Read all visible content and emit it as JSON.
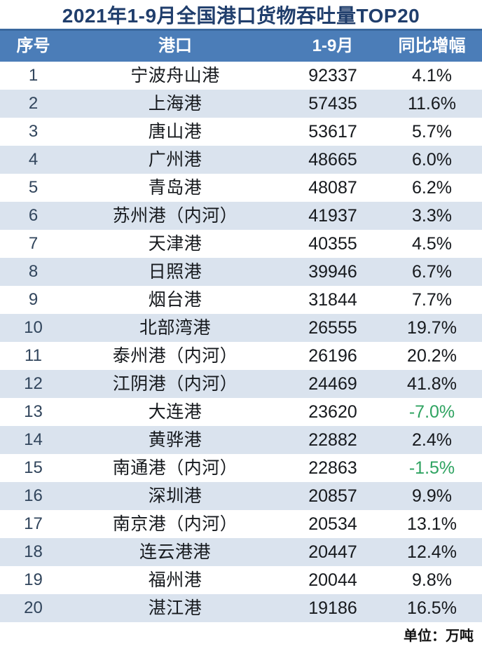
{
  "chart_data": {
    "type": "table",
    "title": "2021年1-9月全国港口货物吞吐量TOP20",
    "columns": [
      "序号",
      "港口",
      "1-9月",
      "同比增幅"
    ],
    "unit_label": "单位：万吨",
    "rows": [
      {
        "rank": "1",
        "port": "宁波舟山港",
        "value": "92337",
        "growth": "4.1%",
        "negative": false
      },
      {
        "rank": "2",
        "port": "上海港",
        "value": "57435",
        "growth": "11.6%",
        "negative": false
      },
      {
        "rank": "3",
        "port": "唐山港",
        "value": "53617",
        "growth": "5.7%",
        "negative": false
      },
      {
        "rank": "4",
        "port": "广州港",
        "value": "48665",
        "growth": "6.0%",
        "negative": false
      },
      {
        "rank": "5",
        "port": "青岛港",
        "value": "48087",
        "growth": "6.2%",
        "negative": false
      },
      {
        "rank": "6",
        "port": "苏州港（内河）",
        "value": "41937",
        "growth": "3.3%",
        "negative": false
      },
      {
        "rank": "7",
        "port": "天津港",
        "value": "40355",
        "growth": "4.5%",
        "negative": false
      },
      {
        "rank": "8",
        "port": "日照港",
        "value": "39946",
        "growth": "6.7%",
        "negative": false
      },
      {
        "rank": "9",
        "port": "烟台港",
        "value": "31844",
        "growth": "7.7%",
        "negative": false
      },
      {
        "rank": "10",
        "port": "北部湾港",
        "value": "26555",
        "growth": "19.7%",
        "negative": false
      },
      {
        "rank": "11",
        "port": "泰州港（内河）",
        "value": "26196",
        "growth": "20.2%",
        "negative": false
      },
      {
        "rank": "12",
        "port": "江阴港（内河）",
        "value": "24469",
        "growth": "41.8%",
        "negative": false
      },
      {
        "rank": "13",
        "port": "大连港",
        "value": "23620",
        "growth": "-7.0%",
        "negative": true
      },
      {
        "rank": "14",
        "port": "黄骅港",
        "value": "22882",
        "growth": "2.4%",
        "negative": false
      },
      {
        "rank": "15",
        "port": "南通港（内河）",
        "value": "22863",
        "growth": "-1.5%",
        "negative": true
      },
      {
        "rank": "16",
        "port": "深圳港",
        "value": "20857",
        "growth": "9.9%",
        "negative": false
      },
      {
        "rank": "17",
        "port": "南京港（内河）",
        "value": "20534",
        "growth": "13.1%",
        "negative": false
      },
      {
        "rank": "18",
        "port": "连云港港",
        "value": "20447",
        "growth": "12.4%",
        "negative": false
      },
      {
        "rank": "19",
        "port": "福州港",
        "value": "20044",
        "growth": "9.8%",
        "negative": false
      },
      {
        "rank": "20",
        "port": "湛江港",
        "value": "19186",
        "growth": "16.5%",
        "negative": false
      }
    ]
  },
  "colors": {
    "header_bg": "#4b7db8",
    "header_top_edge": "#3a689f",
    "row_alt_bg": "#dae3ee",
    "title_text": "#203e6c",
    "rank_text": "#31455c",
    "body_text": "#16191d",
    "negative_growth": "#2fa361"
  }
}
